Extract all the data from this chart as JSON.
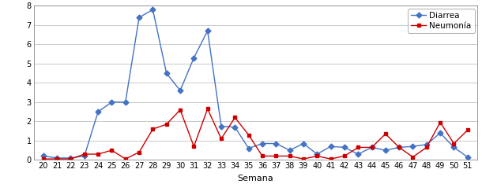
{
  "semanas": [
    20,
    21,
    22,
    23,
    24,
    25,
    26,
    27,
    28,
    29,
    30,
    31,
    32,
    33,
    34,
    35,
    36,
    37,
    38,
    39,
    40,
    41,
    42,
    43,
    44,
    45,
    46,
    47,
    48,
    49,
    50,
    51
  ],
  "diarrea": [
    0.2,
    0.1,
    0.1,
    0.2,
    2.5,
    3.0,
    3.0,
    7.4,
    7.8,
    4.5,
    3.6,
    5.3,
    6.7,
    1.75,
    1.7,
    0.6,
    0.85,
    0.85,
    0.5,
    0.85,
    0.3,
    0.7,
    0.65,
    0.3,
    0.65,
    0.5,
    0.65,
    0.7,
    0.8,
    1.4,
    0.65,
    0.15
  ],
  "neumonia": [
    0.05,
    0.05,
    0.05,
    0.3,
    0.3,
    0.5,
    0.05,
    0.4,
    1.6,
    1.85,
    2.6,
    0.7,
    2.65,
    1.1,
    2.2,
    1.3,
    0.2,
    0.2,
    0.2,
    0.05,
    0.2,
    0.05,
    0.2,
    0.65,
    0.65,
    1.35,
    0.65,
    0.15,
    0.65,
    1.95,
    0.85,
    1.55
  ],
  "diarrea_color": "#4472C4",
  "neumonia_color": "#CC0000",
  "marker_diarrea": "D",
  "marker_neumonia": "s",
  "xlabel": "Semana",
  "ylim": [
    0,
    8
  ],
  "yticks": [
    0,
    1,
    2,
    3,
    4,
    5,
    6,
    7,
    8
  ],
  "legend_diarrea": "Diarrea",
  "legend_neumonia": "Neumonía",
  "bg_color": "#ffffff",
  "grid_color": "#c0c0c0",
  "tick_fontsize": 7,
  "xlabel_fontsize": 8,
  "legend_fontsize": 7.5
}
